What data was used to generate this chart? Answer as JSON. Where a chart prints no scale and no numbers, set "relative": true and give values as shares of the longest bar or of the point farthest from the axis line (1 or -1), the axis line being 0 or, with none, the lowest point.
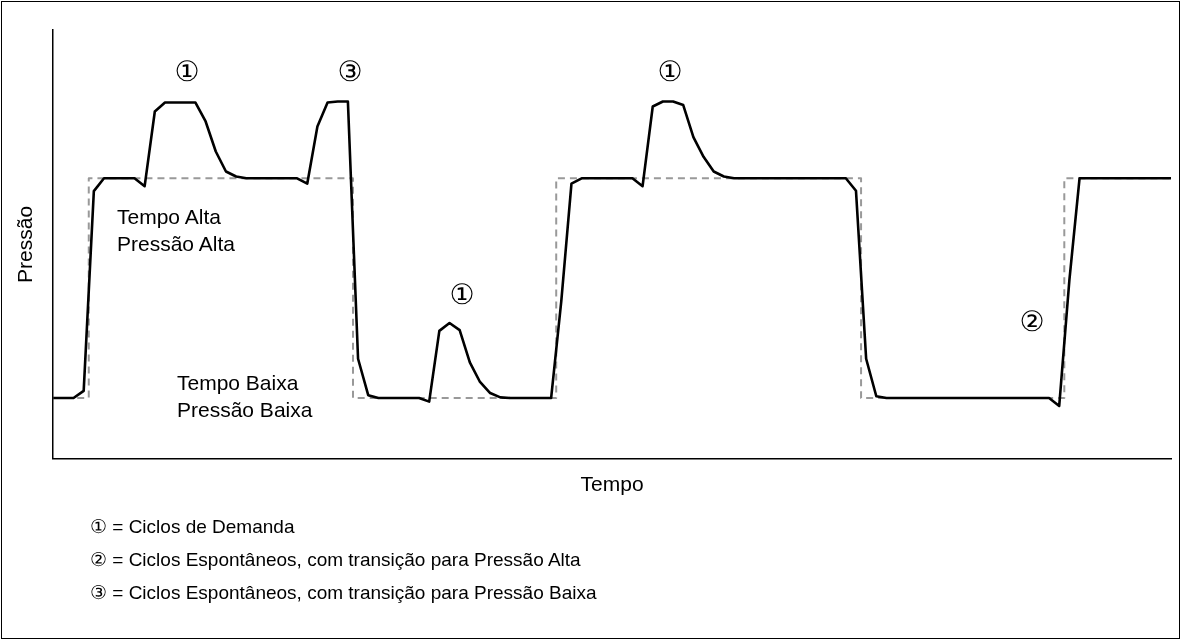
{
  "chart_data": {
    "type": "line",
    "relative": true,
    "xlabel": "Tempo",
    "ylabel": "Pressão",
    "tick_labels": false,
    "grid": false,
    "legend": false,
    "marker": "none",
    "categories": [
      null,
      null,
      null,
      null,
      null,
      null,
      null,
      null,
      null,
      null,
      null,
      null,
      null,
      null,
      null,
      null,
      null,
      null,
      null,
      null,
      null,
      null,
      null,
      null,
      null,
      null,
      null,
      null,
      null,
      null,
      null,
      null,
      null,
      null,
      null,
      null,
      null,
      null,
      null,
      null,
      null,
      null,
      null,
      null,
      null,
      null,
      null,
      null,
      null,
      null,
      null,
      null,
      null,
      null,
      null,
      null,
      null,
      null,
      null,
      null,
      null,
      null,
      null,
      null,
      null,
      null,
      null,
      null,
      null,
      null,
      null,
      null,
      null,
      null,
      null,
      null,
      null,
      null,
      null,
      null,
      null,
      null,
      null,
      null,
      null,
      null,
      null,
      null,
      null,
      null,
      null,
      null,
      null,
      null,
      null,
      null,
      null,
      null,
      null,
      null,
      null,
      null,
      null,
      null,
      null,
      null,
      null,
      null,
      null,
      null,
      null
    ],
    "series": [
      {
        "color": "#000000",
        "line_style": "solid",
        "values": [
          0.17,
          0.17,
          0.17,
          0.19,
          0.749,
          0.785,
          0.785,
          0.785,
          0.785,
          0.763,
          0.972,
          0.997,
          0.997,
          0.997,
          0.997,
          0.944,
          0.86,
          0.804,
          0.79,
          0.785,
          0.785,
          0.785,
          0.785,
          0.785,
          0.785,
          0.77,
          0.93,
          0.997,
          1,
          1,
          0.28,
          0.178,
          0.17,
          0.17,
          0.17,
          0.17,
          0.17,
          0.16,
          0.358,
          0.38,
          0.36,
          0.27,
          0.215,
          0.184,
          0.172,
          0.17,
          0.17,
          0.17,
          0.17,
          0.17,
          0.441,
          0.77,
          0.785,
          0.785,
          0.785,
          0.785,
          0.785,
          0.785,
          0.763,
          0.986,
          1,
          1,
          0.99,
          0.9,
          0.845,
          0.804,
          0.79,
          0.785,
          0.785,
          0.785,
          0.785,
          0.785,
          0.785,
          0.785,
          0.785,
          0.785,
          0.785,
          0.785,
          0.785,
          0.75,
          0.28,
          0.175,
          0.17,
          0.17,
          0.17,
          0.17,
          0.17,
          0.17,
          0.17,
          0.17,
          0.17,
          0.17,
          0.17,
          0.17,
          0.17,
          0.17,
          0.17,
          0.17,
          0.17,
          0.148,
          0.5,
          0.785,
          0.785,
          0.785,
          0.785,
          0.785,
          0.785,
          0.785,
          0.785,
          0.785,
          0.785
        ]
      },
      {
        "type": "step",
        "color": "#999999",
        "line_style": "dashed",
        "values": [
          0.17,
          0.17,
          0.17,
          0.17,
          0.785,
          0.785,
          0.785,
          0.785,
          0.785,
          0.785,
          0.785,
          0.785,
          0.785,
          0.785,
          0.785,
          0.785,
          0.785,
          0.785,
          0.785,
          0.785,
          0.785,
          0.785,
          0.785,
          0.785,
          0.785,
          0.785,
          0.785,
          0.785,
          0.785,
          0.785,
          0.17,
          0.17,
          0.17,
          0.17,
          0.17,
          0.17,
          0.17,
          0.17,
          0.17,
          0.17,
          0.17,
          0.17,
          0.17,
          0.17,
          0.17,
          0.17,
          0.17,
          0.17,
          0.17,
          0.17,
          0.785,
          0.785,
          0.785,
          0.785,
          0.785,
          0.785,
          0.785,
          0.785,
          0.785,
          0.785,
          0.785,
          0.785,
          0.785,
          0.785,
          0.785,
          0.785,
          0.785,
          0.785,
          0.785,
          0.785,
          0.785,
          0.785,
          0.785,
          0.785,
          0.785,
          0.785,
          0.785,
          0.785,
          0.785,
          0.785,
          0.17,
          0.17,
          0.17,
          0.17,
          0.17,
          0.17,
          0.17,
          0.17,
          0.17,
          0.17,
          0.17,
          0.17,
          0.17,
          0.17,
          0.17,
          0.17,
          0.17,
          0.17,
          0.17,
          0.17,
          0.785,
          0.785,
          0.785,
          0.785,
          0.785,
          0.785,
          0.785,
          0.785,
          0.785,
          0.785,
          0.785
        ]
      }
    ],
    "annotations": [
      "①",
      "③",
      "①",
      "①",
      "②",
      "Tempo Alta\nPressão Alta",
      "Tempo Baixa\nPressão Baixa",
      "① = Ciclos de Demanda",
      "② = Ciclos Espontâneos, com transição para Pressão Alta",
      "③ = Ciclos Espontâneos, com transição para Pressão Baixa"
    ]
  }
}
